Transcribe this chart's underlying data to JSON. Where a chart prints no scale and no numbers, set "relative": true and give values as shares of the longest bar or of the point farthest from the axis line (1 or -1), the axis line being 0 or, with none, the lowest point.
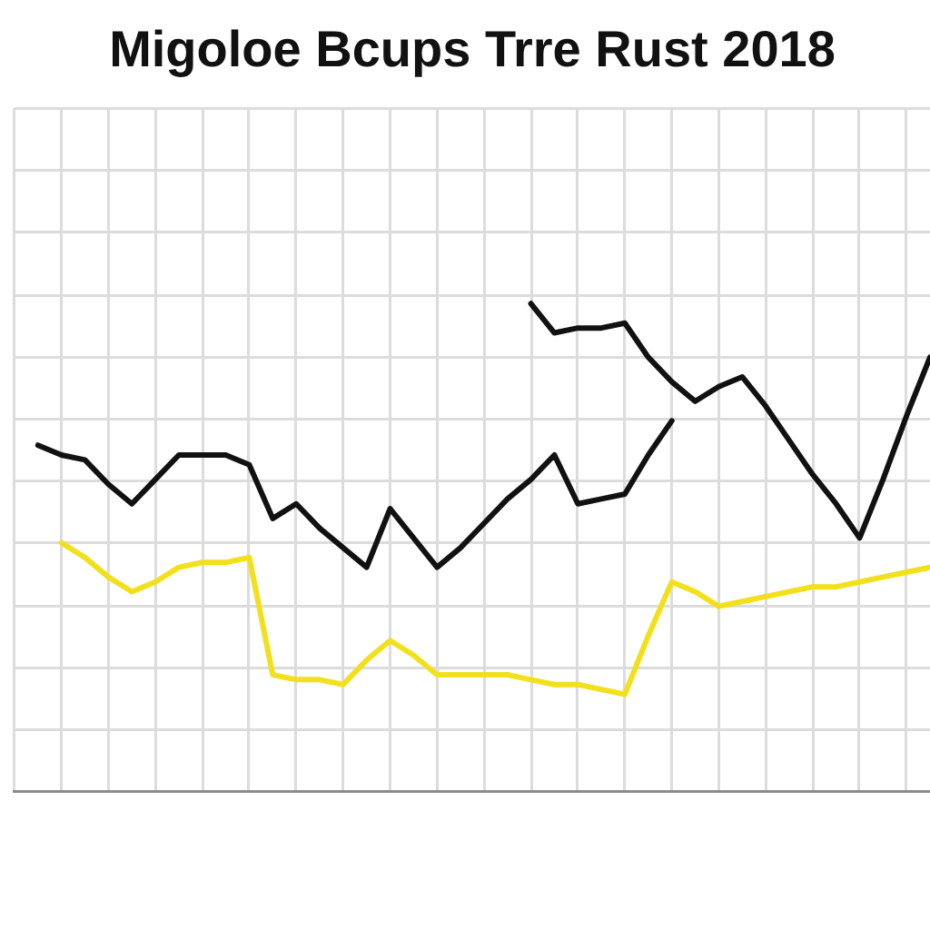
{
  "chart_data": {
    "type": "line",
    "title": "Migoloe Bcups Trre Rust 2018",
    "relative": true,
    "grid": true,
    "marker": "none",
    "line_style": "solid",
    "categories": [
      null,
      null,
      null,
      null,
      null,
      null,
      null,
      null,
      null,
      null,
      null,
      null,
      null,
      null,
      null,
      null,
      null,
      null,
      null,
      null,
      null,
      null,
      null,
      null,
      null,
      null,
      null,
      null,
      null,
      null,
      null,
      null,
      null,
      null,
      null,
      null,
      null,
      null,
      null,
      null
    ],
    "series": [
      {
        "color": "#111111",
        "values": [
          null,
          0.71,
          0.69,
          0.68,
          0.63,
          0.59,
          0.64,
          0.69,
          0.69,
          0.69,
          0.67,
          0.56,
          0.59,
          0.54,
          0.5,
          0.46,
          0.58,
          0.52,
          0.46,
          0.5,
          0.55,
          0.6,
          0.64,
          0.69,
          0.59,
          0.6,
          0.61,
          0.69,
          0.76,
          null,
          null,
          null,
          null,
          null,
          null,
          null,
          null,
          null,
          null,
          null
        ]
      },
      {
        "color": "#111111",
        "values": [
          null,
          null,
          null,
          null,
          null,
          null,
          null,
          null,
          null,
          null,
          null,
          null,
          null,
          null,
          null,
          null,
          null,
          null,
          null,
          null,
          null,
          null,
          1.0,
          0.94,
          0.95,
          0.95,
          0.96,
          0.89,
          0.84,
          0.8,
          0.83,
          0.85,
          0.79,
          0.72,
          0.65,
          0.59,
          0.52,
          0.64,
          0.77,
          0.89
        ]
      },
      {
        "color": "#f2e01c",
        "values": [
          null,
          null,
          0.51,
          0.48,
          0.44,
          0.41,
          0.43,
          0.46,
          0.47,
          0.47,
          0.48,
          0.24,
          0.23,
          0.23,
          0.22,
          0.27,
          0.31,
          0.28,
          0.24,
          0.24,
          0.24,
          0.24,
          0.23,
          0.22,
          0.22,
          0.21,
          0.2,
          0.32,
          0.43,
          0.41,
          0.38,
          0.39,
          0.4,
          0.41,
          0.42,
          0.42,
          0.43,
          0.44,
          0.45,
          0.46
        ]
      }
    ]
  }
}
